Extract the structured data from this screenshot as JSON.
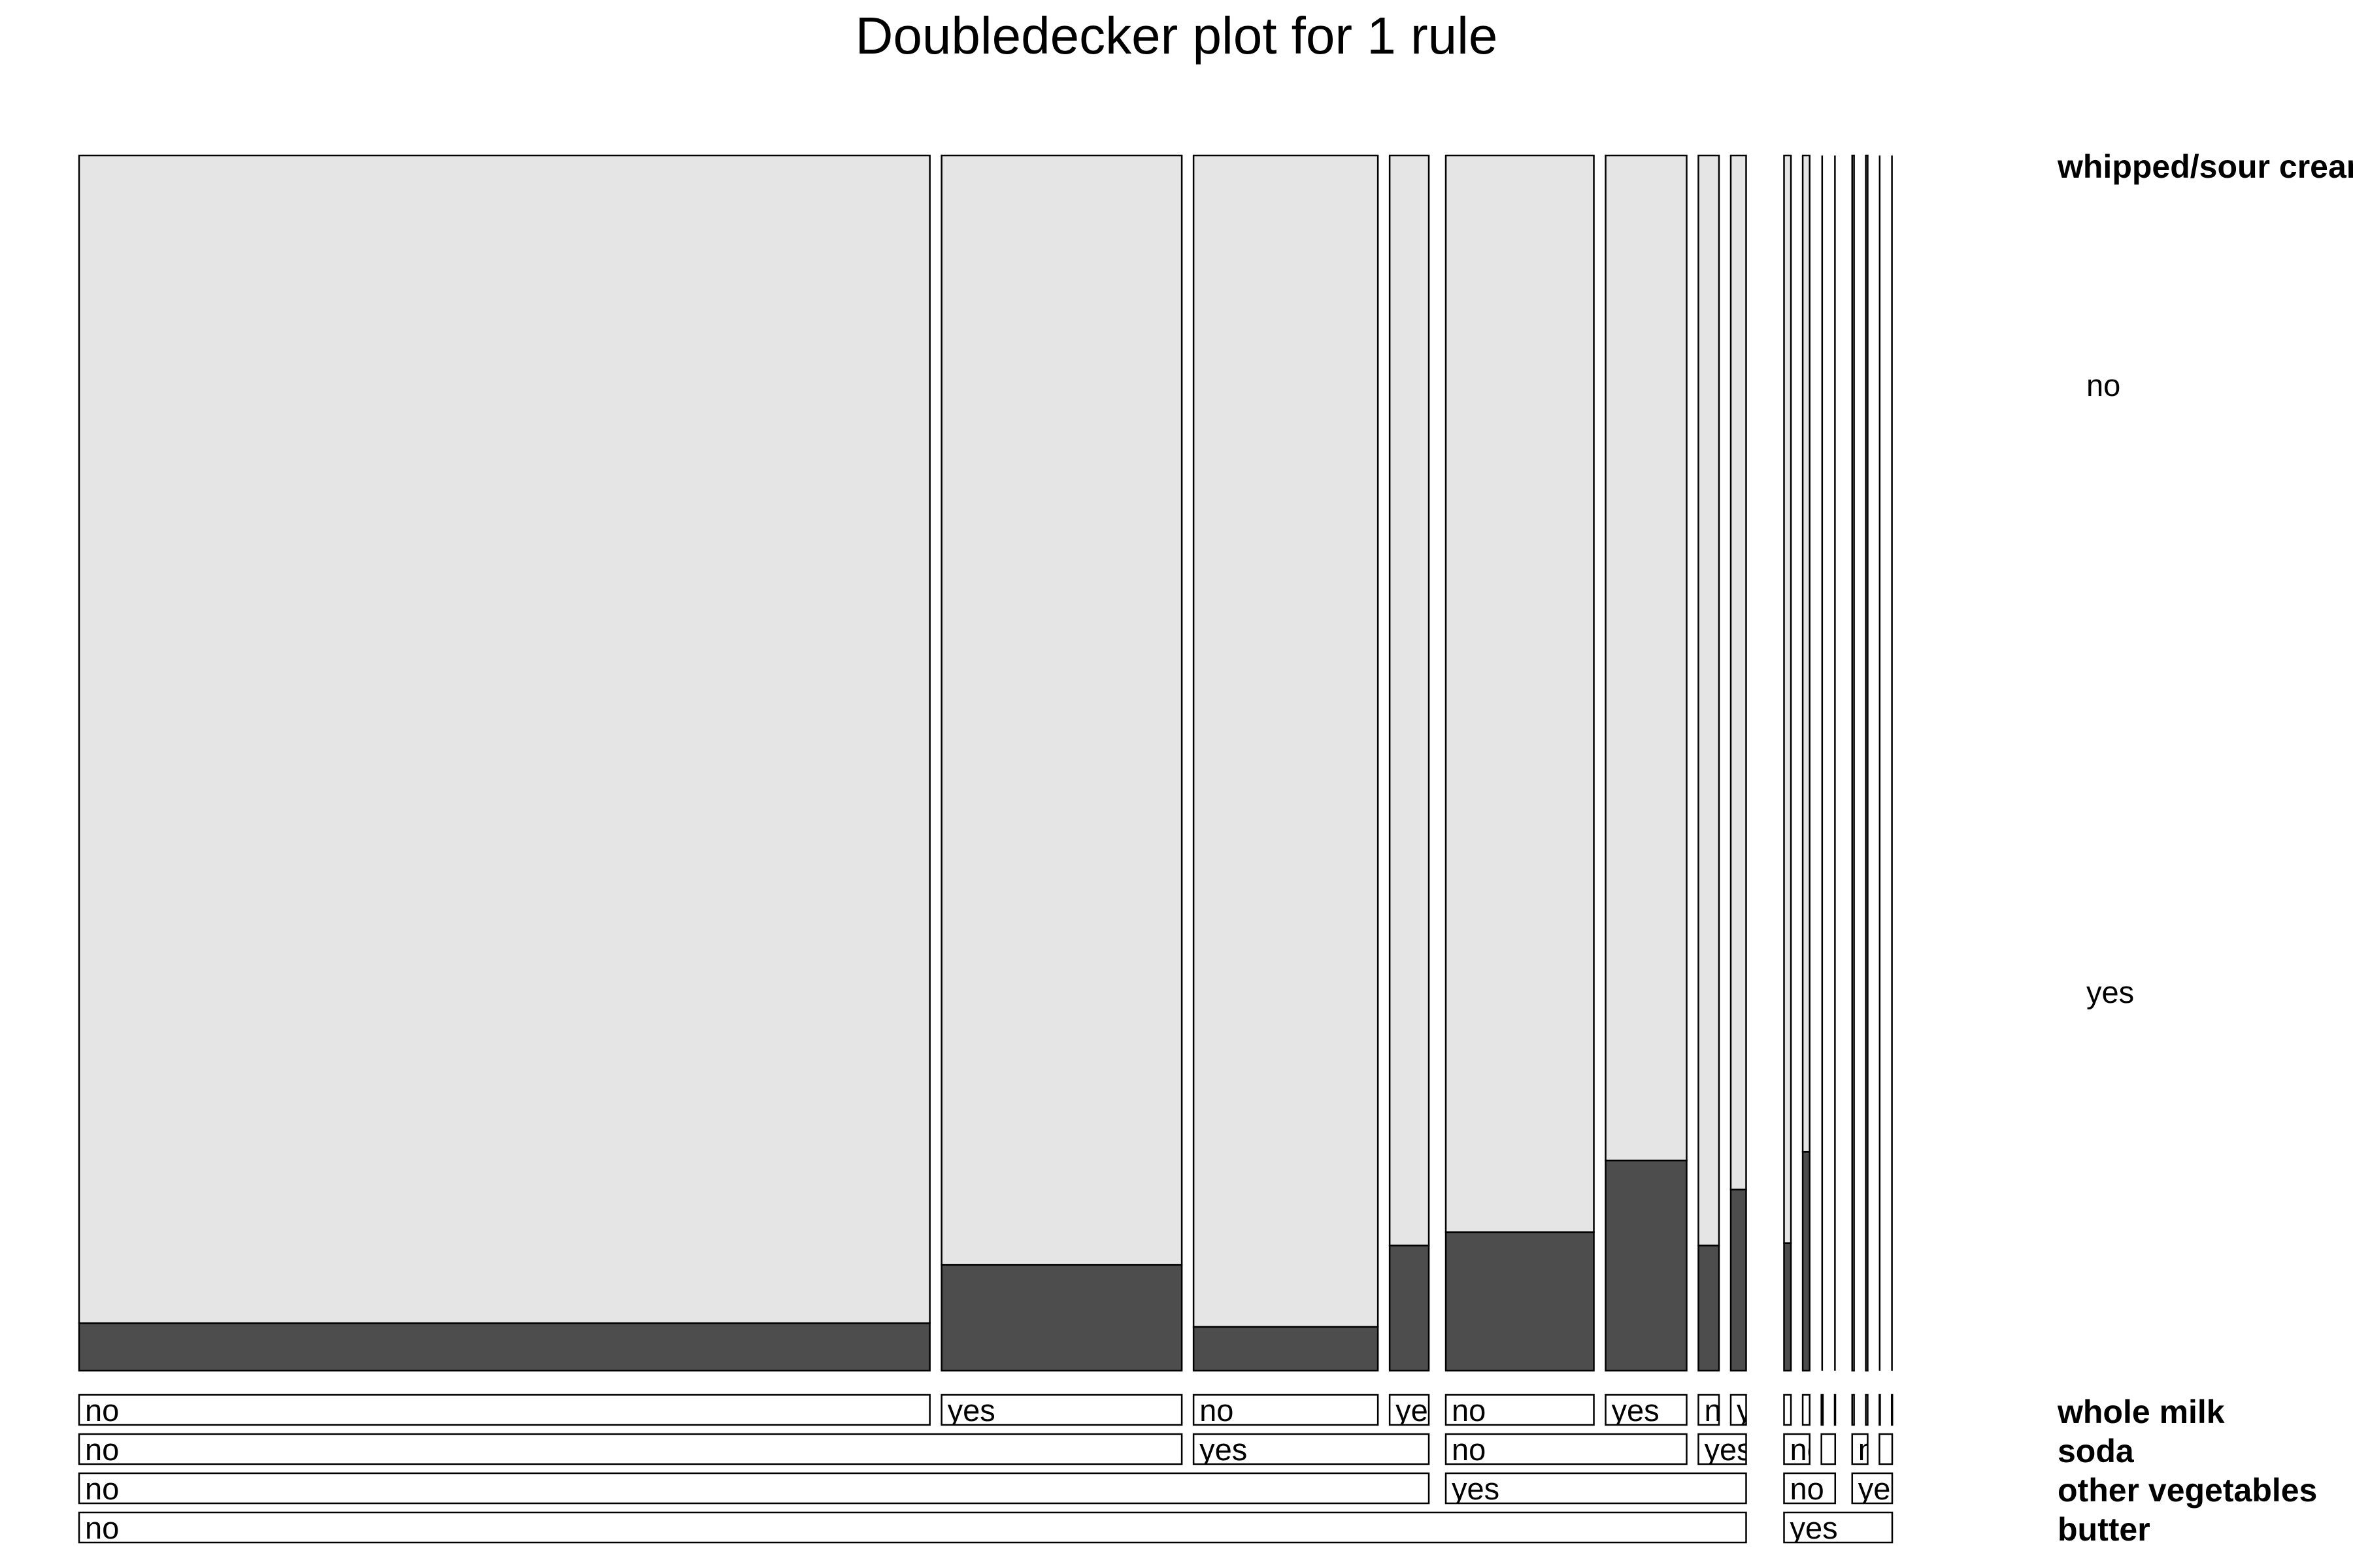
{
  "chart_data": {
    "type": "doubledecker",
    "title": "Doubledecker plot for 1 rule",
    "response": {
      "name": "whipped/sour cream",
      "levels": [
        "no",
        "yes"
      ],
      "colors": {
        "no": "#e5e5e5",
        "yes": "#4d4d4d"
      }
    },
    "variables": [
      "whole milk",
      "soda",
      "other vegetables",
      "butter"
    ],
    "cells": [
      {
        "butter": "no",
        "other vegetables": "no",
        "soda": "no",
        "whole milk": "no",
        "weight": 0.504,
        "yes_fraction": 0.039
      },
      {
        "butter": "no",
        "other vegetables": "no",
        "soda": "no",
        "whole milk": "yes",
        "weight": 0.1423,
        "yes_fraction": 0.087
      },
      {
        "butter": "no",
        "other vegetables": "no",
        "soda": "yes",
        "whole milk": "no",
        "weight": 0.1092,
        "yes_fraction": 0.036
      },
      {
        "butter": "no",
        "other vegetables": "no",
        "soda": "yes",
        "whole milk": "yes",
        "weight": 0.0232,
        "yes_fraction": 0.103
      },
      {
        "butter": "no",
        "other vegetables": "yes",
        "soda": "no",
        "whole milk": "no",
        "weight": 0.0877,
        "yes_fraction": 0.114
      },
      {
        "butter": "no",
        "other vegetables": "yes",
        "soda": "no",
        "whole milk": "yes",
        "weight": 0.048,
        "yes_fraction": 0.173
      },
      {
        "butter": "no",
        "other vegetables": "yes",
        "soda": "yes",
        "whole milk": "no",
        "weight": 0.0122,
        "yes_fraction": 0.103
      },
      {
        "butter": "no",
        "other vegetables": "yes",
        "soda": "yes",
        "whole milk": "yes",
        "weight": 0.0091,
        "yes_fraction": 0.149
      },
      {
        "butter": "yes",
        "other vegetables": "no",
        "soda": "no",
        "whole milk": "no",
        "weight": 0.0041,
        "yes_fraction": 0.105
      },
      {
        "butter": "yes",
        "other vegetables": "no",
        "soda": "no",
        "whole milk": "yes",
        "weight": 0.0041,
        "yes_fraction": 0.18
      },
      {
        "butter": "yes",
        "other vegetables": "no",
        "soda": "yes",
        "whole milk": "no",
        "weight": 0.0009,
        "yes_fraction": 0.0
      },
      {
        "butter": "yes",
        "other vegetables": "no",
        "soda": "yes",
        "whole milk": "yes",
        "weight": 0.0003,
        "yes_fraction": 0.0
      },
      {
        "butter": "yes",
        "other vegetables": "yes",
        "soda": "no",
        "whole milk": "no",
        "weight": 0.0011,
        "yes_fraction": 0.0
      },
      {
        "butter": "yes",
        "other vegetables": "yes",
        "soda": "no",
        "whole milk": "yes",
        "weight": 0.0011,
        "yes_fraction": 0.0
      },
      {
        "butter": "yes",
        "other vegetables": "yes",
        "soda": "yes",
        "whole milk": "no",
        "weight": 0.0003,
        "yes_fraction": 0.0
      },
      {
        "butter": "yes",
        "other vegetables": "yes",
        "soda": "yes",
        "whole milk": "yes",
        "weight": 0.0003,
        "yes_fraction": 0.0
      }
    ]
  }
}
